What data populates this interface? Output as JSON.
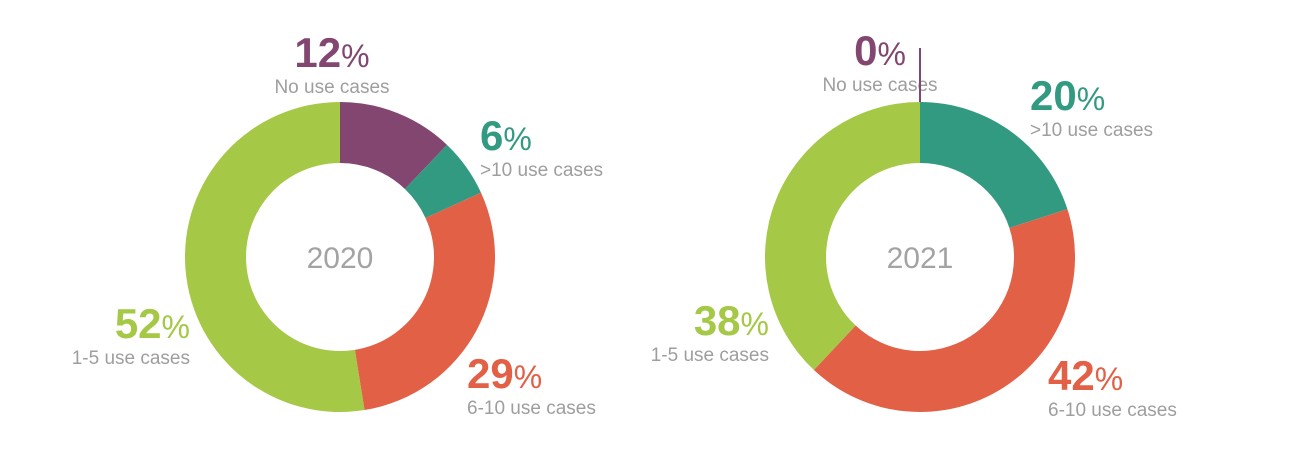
{
  "chart_data": [
    {
      "type": "pie",
      "center_label": "2020",
      "slices": [
        {
          "name": "No use cases",
          "value": 12,
          "display": "12",
          "color": "#824670"
        },
        {
          "name": ">10 use cases",
          "value": 6,
          "display": "6",
          "color": "#339a82"
        },
        {
          "name": "6-10 use cases",
          "value": 29,
          "display": "29",
          "color": "#e26046"
        },
        {
          "name": "1-5 use cases",
          "value": 52,
          "display": "52",
          "color": "#a5c846"
        }
      ]
    },
    {
      "type": "pie",
      "center_label": "2021",
      "slices": [
        {
          "name": "No use cases",
          "value": 0,
          "display": "0",
          "color": "#824670"
        },
        {
          "name": ">10 use cases",
          "value": 20,
          "display": "20",
          "color": "#339a82"
        },
        {
          "name": "6-10 use cases",
          "value": 42,
          "display": "42",
          "color": "#e26046"
        },
        {
          "name": "1-5 use cases",
          "value": 38,
          "display": "38",
          "color": "#a5c846"
        }
      ]
    }
  ],
  "percent_symbol": "%"
}
